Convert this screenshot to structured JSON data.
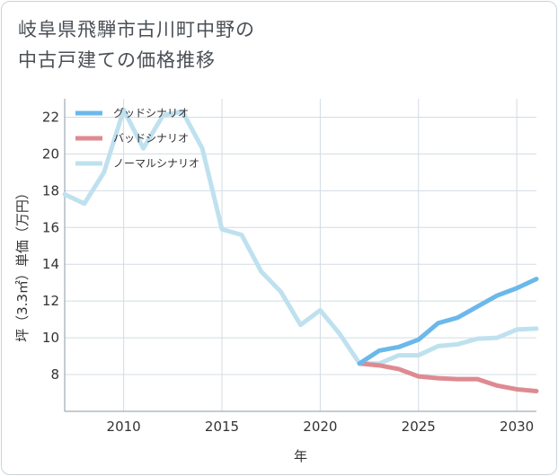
{
  "chart_data": {
    "type": "line",
    "title_lines": [
      "岐阜県飛騨市古川町中野の",
      "中古戸建ての価格推移"
    ],
    "xlabel": "年",
    "ylabel": "坪（3.3㎡）単価（万円）",
    "xlim": [
      2007,
      2031
    ],
    "ylim": [
      6,
      23
    ],
    "x_ticks": [
      2010,
      2015,
      2020,
      2025,
      2030
    ],
    "y_ticks": [
      8,
      10,
      12,
      14,
      16,
      18,
      20,
      22
    ],
    "grid": true,
    "legend_position": "top-left",
    "series": [
      {
        "name": "グッドシナリオ",
        "color": "#6bb8ea",
        "x": [
          2022,
          2023,
          2024,
          2025,
          2026,
          2027,
          2028,
          2029,
          2030,
          2031
        ],
        "y": [
          8.6,
          9.3,
          9.5,
          9.9,
          10.8,
          11.1,
          11.7,
          12.3,
          12.7,
          13.2
        ]
      },
      {
        "name": "バッドシナリオ",
        "color": "#de8a91",
        "x": [
          2022,
          2023,
          2024,
          2025,
          2026,
          2027,
          2028,
          2029,
          2030,
          2031
        ],
        "y": [
          8.6,
          8.5,
          8.3,
          7.9,
          7.8,
          7.75,
          7.75,
          7.4,
          7.2,
          7.1
        ]
      },
      {
        "name": "ノーマルシナリオ",
        "color": "#bfe1ef",
        "x": [
          2007,
          2008,
          2009,
          2010,
          2011,
          2012,
          2013,
          2014,
          2015,
          2016,
          2017,
          2018,
          2019,
          2020,
          2021,
          2022,
          2023,
          2024,
          2025,
          2026,
          2027,
          2028,
          2029,
          2030,
          2031
        ],
        "y": [
          17.8,
          17.3,
          19.0,
          22.4,
          20.3,
          22.1,
          22.3,
          20.3,
          15.9,
          15.6,
          13.6,
          12.5,
          10.7,
          11.5,
          10.2,
          8.6,
          8.6,
          9.05,
          9.05,
          9.55,
          9.65,
          9.95,
          10.0,
          10.45,
          10.5
        ]
      }
    ]
  }
}
